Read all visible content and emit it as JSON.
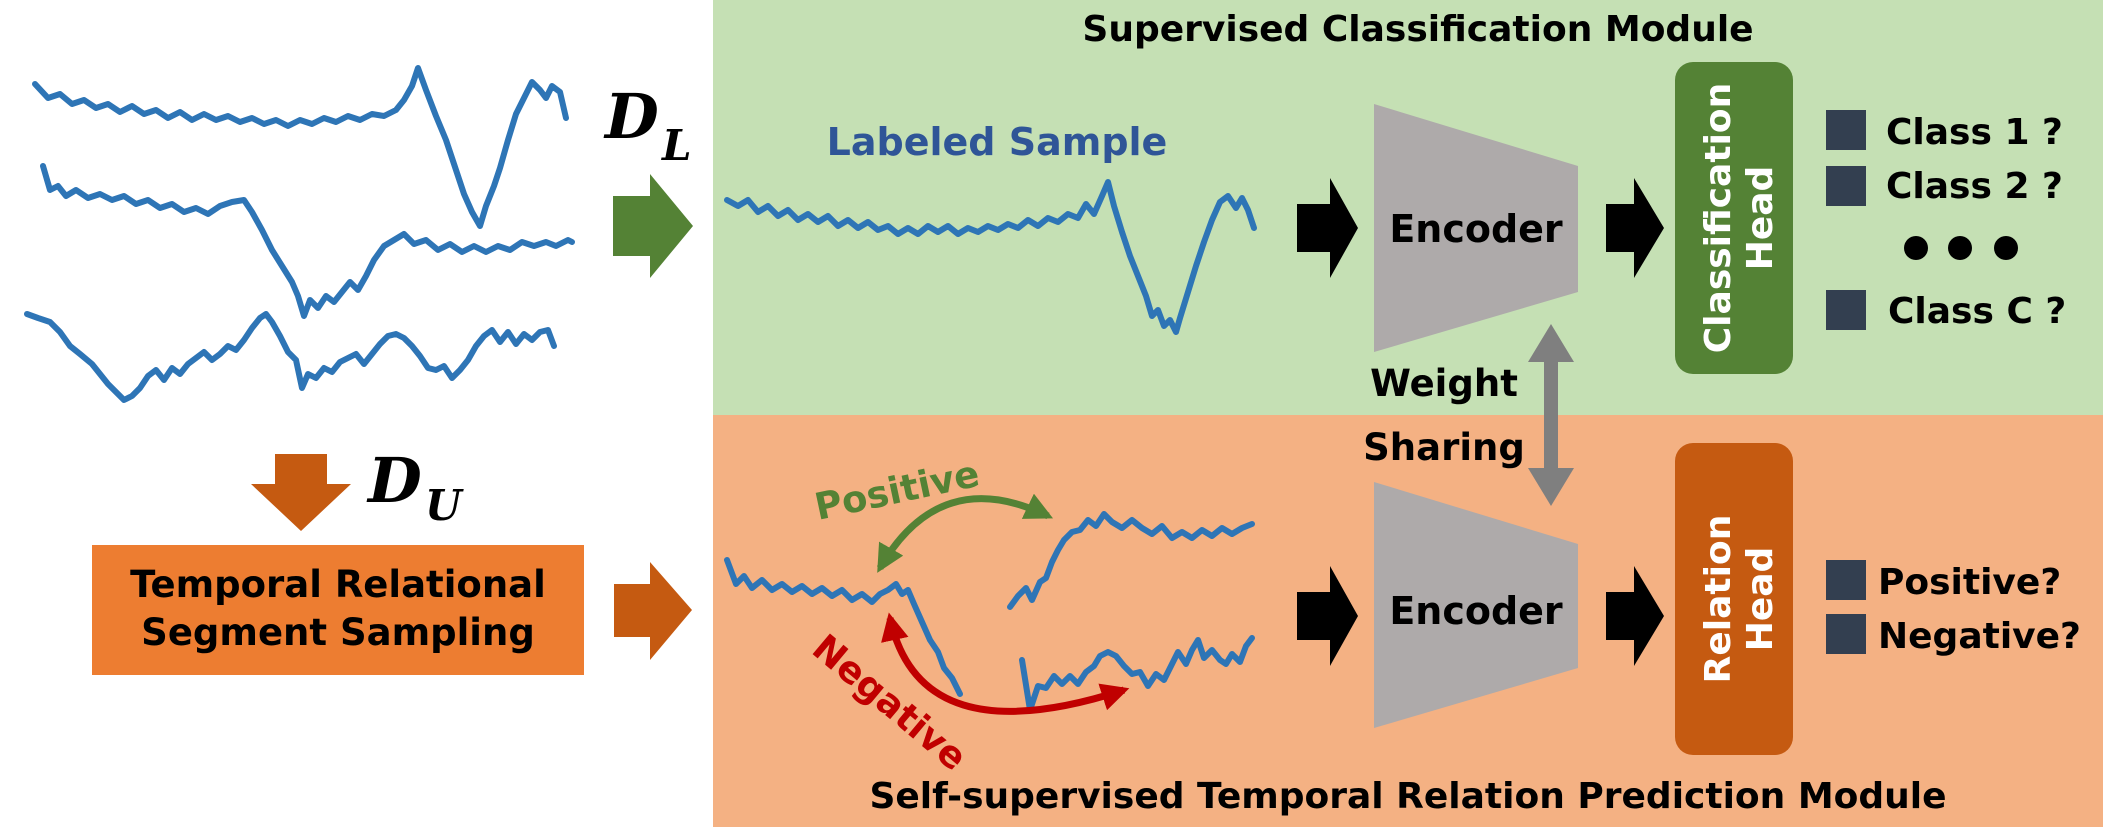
{
  "symbols": {
    "labeled_set": {
      "letter": "D",
      "subscript": "L"
    },
    "unlabeled_set": {
      "letter": "D",
      "subscript": "U"
    }
  },
  "sampling_box": {
    "line1": "Temporal Relational",
    "line2": "Segment Sampling"
  },
  "supervised_module": {
    "title": "Supervised Classification Module",
    "sample_label": "Labeled Sample",
    "encoder_label": "Encoder",
    "head_label_line1": "Classification",
    "head_label_line2": "Head",
    "outputs": [
      "Class 1 ?",
      "Class 2 ?",
      "Class C ?"
    ]
  },
  "weight_sharing": {
    "line1": "Weight",
    "line2": "Sharing"
  },
  "self_supervised_module": {
    "title": "Self-supervised Temporal Relation Prediction Module",
    "positive_label": "Positive",
    "negative_label": "Negative",
    "encoder_label": "Encoder",
    "head_label_line1": "Relation",
    "head_label_line2": "Head",
    "outputs": [
      "Positive?",
      "Negative?"
    ]
  },
  "colors": {
    "green_bg": "#c5e0b4",
    "orange_bg": "#f4b183",
    "signal_blue": "#2e75b6",
    "label_blue": "#2f5597",
    "green_arrow": "#548235",
    "orange_arrow": "#c55a11",
    "sampling_box": "#ed7d31",
    "encoder_gray": "#aeaaaa",
    "class_head_green": "#548235",
    "relation_head_orange": "#c55a11",
    "output_square": "#333f50",
    "share_arrow": "#7f7f7f",
    "positive_green": "#548235",
    "negative_red": "#c00000"
  }
}
